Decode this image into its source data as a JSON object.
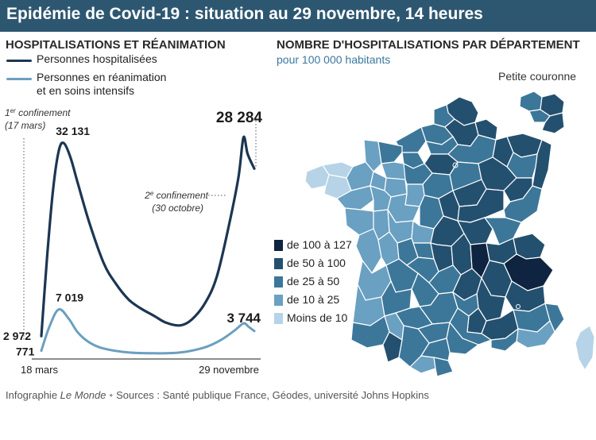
{
  "header": {
    "title": "Epidémie de Covid-19 : situation au 29 novembre, 14 heures"
  },
  "left": {
    "title": "HOSPITALISATIONS ET RÉANIMATION",
    "legend": [
      {
        "label": "Personnes hospitalisées",
        "color": "#1c3652"
      },
      {
        "label_line1": "Personnes en réanimation",
        "label_line2": "et en soins intensifs",
        "color": "#6b9fc0"
      }
    ]
  },
  "chart_data": {
    "type": "line",
    "x_start_label": "18 mars",
    "x_end_label": "29 novembre",
    "series": [
      {
        "name": "Personnes hospitalisées",
        "color": "#1c3652",
        "points": [
          [
            "2020-03-18",
            2972
          ],
          [
            "2020-03-25",
            15000
          ],
          [
            "2020-04-01",
            25000
          ],
          [
            "2020-04-08",
            31000
          ],
          [
            "2020-04-14",
            32131
          ],
          [
            "2020-04-22",
            30000
          ],
          [
            "2020-05-01",
            26000
          ],
          [
            "2020-05-15",
            20000
          ],
          [
            "2020-06-01",
            14000
          ],
          [
            "2020-06-15",
            11000
          ],
          [
            "2020-07-01",
            8500
          ],
          [
            "2020-07-15",
            7200
          ],
          [
            "2020-08-01",
            6000
          ],
          [
            "2020-08-15",
            5000
          ],
          [
            "2020-09-01",
            4600
          ],
          [
            "2020-09-15",
            5500
          ],
          [
            "2020-10-01",
            8000
          ],
          [
            "2020-10-15",
            12000
          ],
          [
            "2020-10-30",
            20000
          ],
          [
            "2020-11-10",
            27000
          ],
          [
            "2020-11-16",
            33000
          ],
          [
            "2020-11-21",
            30500
          ],
          [
            "2020-11-29",
            28284
          ]
        ]
      },
      {
        "name": "Personnes en réanimation et en soins intensifs",
        "color": "#6b9fc0",
        "points": [
          [
            "2020-03-18",
            771
          ],
          [
            "2020-03-28",
            4500
          ],
          [
            "2020-04-08",
            7019
          ],
          [
            "2020-04-20",
            5600
          ],
          [
            "2020-05-01",
            3500
          ],
          [
            "2020-05-15",
            2000
          ],
          [
            "2020-06-01",
            1100
          ],
          [
            "2020-07-01",
            500
          ],
          [
            "2020-08-01",
            380
          ],
          [
            "2020-09-01",
            500
          ],
          [
            "2020-10-01",
            1300
          ],
          [
            "2020-10-20",
            2400
          ],
          [
            "2020-11-05",
            3800
          ],
          [
            "2020-11-16",
            4900
          ],
          [
            "2020-11-22",
            4400
          ],
          [
            "2020-11-29",
            3744
          ]
        ]
      }
    ],
    "value_labels": [
      {
        "text": "2 972",
        "series": 0,
        "index": 0
      },
      {
        "text": "771",
        "series": 1,
        "index": 0
      },
      {
        "text": "32 131",
        "series": 0,
        "index": 4
      },
      {
        "text": "7 019",
        "series": 1,
        "index": 2
      },
      {
        "text": "28 284",
        "series": 0,
        "index": 22
      },
      {
        "text": "3 744",
        "series": 1,
        "index": 15
      }
    ],
    "annotations": [
      {
        "date": "2020-03-17",
        "line1_prefix": "1",
        "line1_sup": "er",
        "line1_rest": " confinement",
        "line2": "(17 mars)"
      },
      {
        "date": "2020-10-30",
        "line1_prefix": "2",
        "line1_sup": "e",
        "line1_rest": " confinement",
        "line2": "(30 octobre)"
      }
    ]
  },
  "right": {
    "title": "NOMBRE D'HOSPITALISATIONS PAR DÉPARTEMENT",
    "subtitle": "pour 100 000 habitants",
    "inset_label": "Petite couronne",
    "legend": [
      {
        "label": "de 100 à 127",
        "color": "#0e2440"
      },
      {
        "label": "de 50 à 100",
        "color": "#24506f"
      },
      {
        "label": "de 25 à 50",
        "color": "#3c7799"
      },
      {
        "label": "de 10 à 25",
        "color": "#6aa0c2"
      },
      {
        "label": "Moins de 10",
        "color": "#b6d3e7"
      }
    ]
  },
  "footer": {
    "prefix": "Infographie ",
    "brand": "Le Monde",
    "sources": "Sources : Santé publique France, Géodes, université Johns Hopkins"
  }
}
